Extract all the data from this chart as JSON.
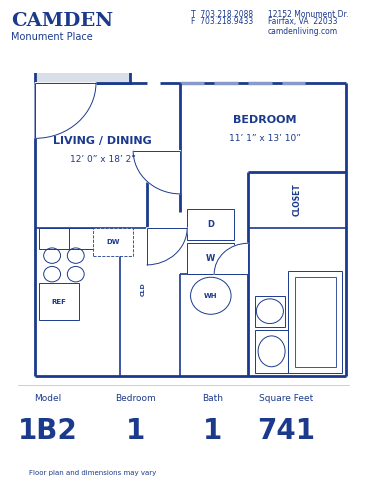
{
  "bg_color": "#ffffff",
  "bc": "#1b3a8c",
  "lc": "#a0aec0",
  "title": "CAMDEN",
  "subtitle": "Monument Place",
  "phone1": "T  703.218.2088",
  "phone2": "F  703.218.9433",
  "address1": "12152 Monument Dr.",
  "address2": "Fairfax, VA  22033",
  "website": "camdenliving.com",
  "model_label": "Model",
  "model_value": "1B2",
  "bedroom_label": "Bedroom",
  "bedroom_value": "1",
  "bath_label": "Bath",
  "bath_value": "1",
  "sqft_label": "Square Feet",
  "sqft_value": "741",
  "disclaimer": "Floor plan and dimensions may vary",
  "room1_name": "LIVING / DINING",
  "room1_dim": "12’ 0” x 18’ 2”",
  "room2_name": "BEDROOM",
  "room2_dim": "11’ 1” x 13’ 10”"
}
